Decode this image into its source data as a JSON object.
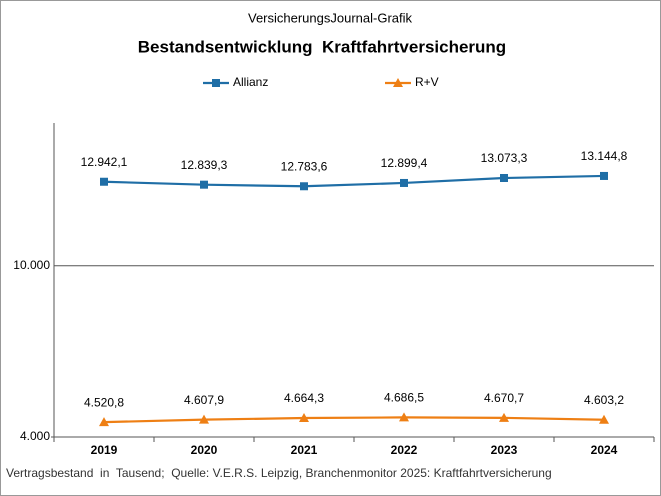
{
  "chart_data": {
    "type": "line",
    "subtitle": "VersicherungsJournal-Grafik",
    "title": "Bestandsentwicklung  Kraftfahrtversicherung",
    "note": "Vertragsbestand  in  Tausend;  Quelle: V.E.R.S. Leipzig, Branchenmonitor 2025: Kraftfahrtversicherung",
    "categories": [
      "2019",
      "2020",
      "2021",
      "2022",
      "2023",
      "2024"
    ],
    "series": [
      {
        "name": "Allianz",
        "color": "#1f6ea6",
        "marker": "square",
        "values": [
          12942.1,
          12839.3,
          12783.6,
          12899.4,
          13073.3,
          13144.8
        ],
        "value_labels": [
          "12.942,1",
          "12.839,3",
          "12.783,6",
          "12.899,4",
          "13.073,3",
          "13.144,8"
        ]
      },
      {
        "name": "R+V",
        "color": "#ee7f14",
        "marker": "triangle",
        "values": [
          4520.8,
          4607.9,
          4664.3,
          4686.5,
          4670.7,
          4603.2
        ],
        "value_labels": [
          "4.520,8",
          "4.607,9",
          "4.664,3",
          "4.686,5",
          "4.670,7",
          "4.603,2"
        ]
      }
    ],
    "ylim": [
      4000,
      15000
    ],
    "yticks": [
      {
        "value": 4000,
        "label": "4.000"
      },
      {
        "value": 10000,
        "label": "10.000"
      }
    ],
    "grid": true
  }
}
